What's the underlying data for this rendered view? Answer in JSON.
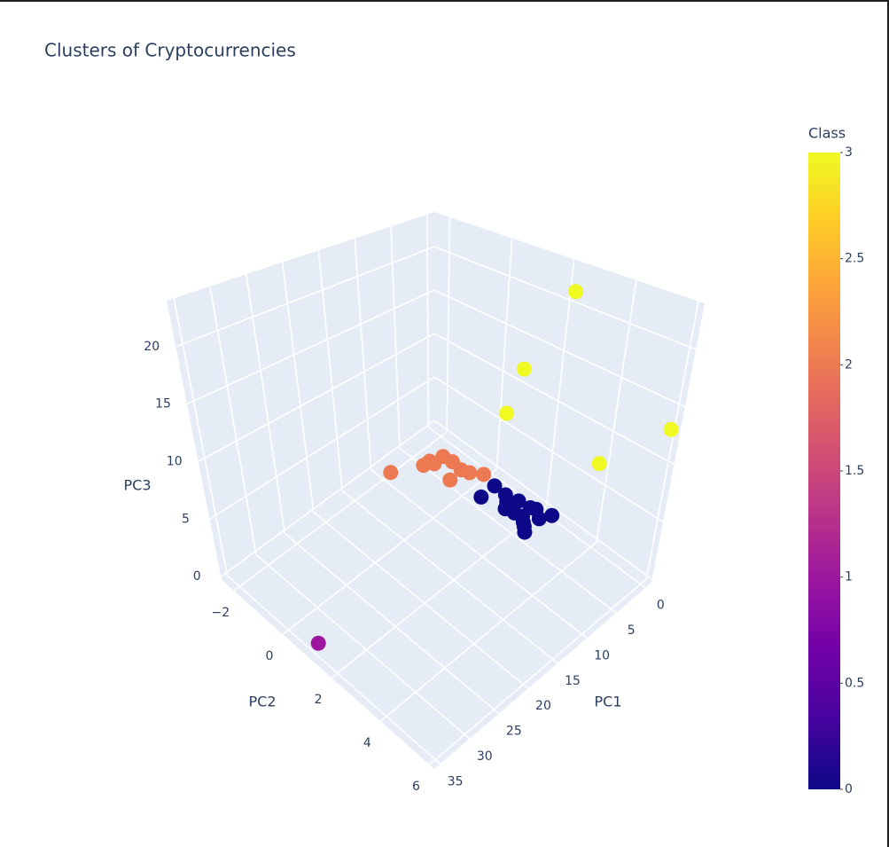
{
  "chart_data": {
    "type": "scatter3d",
    "title": "Clusters of Cryptocurrencies",
    "x_label": "PC1",
    "y_label": "PC2",
    "z_label": "PC3",
    "x": [
      9.1,
      5.4,
      4.4,
      2.7,
      2.5,
      2.7,
      2.3,
      4.8,
      1.3,
      4.3,
      4.1,
      1.7,
      1.8,
      1.4,
      1.2,
      3.4,
      4.4,
      0.3,
      1.7,
      3.4,
      3.1,
      2.5,
      2.8,
      3.8,
      0.9,
      0.1,
      0.1,
      0.1,
      0.1,
      0.1,
      34
    ],
    "y": [
      -1.91,
      -1.45,
      -1.44,
      -1.3,
      -0.97,
      -0.58,
      -0.33,
      -0.53,
      0.0,
      -1.28,
      0.55,
      0.53,
      0.99,
      1.42,
      1.84,
      2.07,
      2.36,
      2.49,
      2.31,
      1.35,
      1.65,
      1.2,
      1.9,
      2.2,
      2.0,
      2.4,
      0.96,
      0.46,
      6.1,
      3.9,
      1.0
    ],
    "z": [
      0.2,
      0.2,
      0.2,
      0.2,
      0.2,
      0.2,
      0.2,
      0.2,
      0.2,
      0.2,
      0.2,
      0.2,
      0.2,
      0.2,
      0.2,
      0.2,
      0.2,
      0.2,
      0.2,
      0.2,
      0.2,
      0.2,
      0.2,
      0.2,
      0.2,
      21.6,
      12.1,
      6.8,
      13.3,
      7.3,
      0
    ],
    "class": [
      2,
      2,
      2,
      2,
      2,
      2,
      2,
      2,
      2,
      2,
      0,
      0,
      0,
      0,
      0,
      0,
      0,
      0,
      0,
      0,
      0,
      0,
      0,
      0,
      0,
      3,
      3,
      3,
      3,
      3,
      1
    ],
    "xlim": [
      -1,
      36
    ],
    "ylim": [
      -2.5,
      6.2
    ],
    "zlim": [
      -0.3,
      24
    ],
    "xticks": [
      0,
      5,
      10,
      15,
      20,
      25,
      30,
      35
    ],
    "yticks": [
      {
        "value": -2,
        "label": "−2"
      },
      0,
      2,
      4,
      6
    ],
    "zticks": [
      0,
      5,
      10,
      15,
      20
    ],
    "colorbar_title": "Class",
    "clim": [
      0,
      3
    ],
    "colorbar_ticks": [
      0,
      0.5,
      1,
      1.5,
      2,
      2.5,
      3
    ],
    "colorscale": [
      "#0d0887",
      "#46039f",
      "#7201a8",
      "#9c179e",
      "#bd3786",
      "#d8576b",
      "#ed7953",
      "#fb9f3a",
      "#fdca26",
      "#f0f921"
    ],
    "grid": true
  }
}
